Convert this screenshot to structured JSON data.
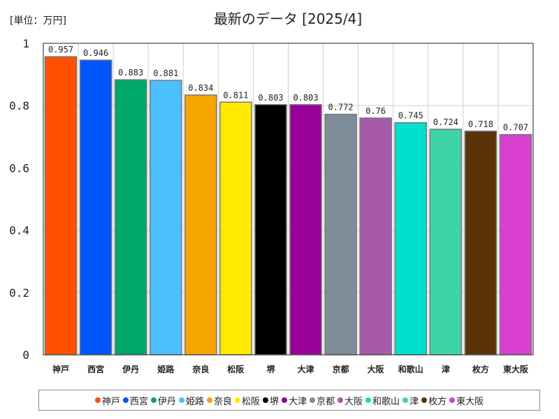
{
  "chart_data": {
    "type": "bar",
    "title": "最新のデータ [2025/4]",
    "unit_label": "[単位：万円]",
    "xlabel": "",
    "ylabel": "",
    "ylim": [
      0,
      1
    ],
    "yticks": [
      "0",
      "0.2",
      "0.4",
      "0.6",
      "0.8",
      "1"
    ],
    "grid": true,
    "legend_position": "bottom",
    "categories": [
      "神戸",
      "西宮",
      "伊丹",
      "姫路",
      "奈良",
      "松阪",
      "堺",
      "大津",
      "京都",
      "大阪",
      "和歌山",
      "津",
      "枚方",
      "東大阪"
    ],
    "values": [
      0.957,
      0.946,
      0.883,
      0.881,
      0.834,
      0.811,
      0.803,
      0.803,
      0.772,
      0.76,
      0.745,
      0.724,
      0.718,
      0.707
    ],
    "value_labels": [
      "0.957",
      "0.946",
      "0.883",
      "0.881",
      "0.834",
      "0.811",
      "0.803",
      "0.803",
      "0.772",
      "0.76",
      "0.745",
      "0.724",
      "0.718",
      "0.707"
    ],
    "colors": [
      "#ff5000",
      "#0055ff",
      "#00a86b",
      "#4cbfff",
      "#f5a500",
      "#ffea00",
      "#000000",
      "#990099",
      "#7f8c99",
      "#a55aaa",
      "#00e0d0",
      "#3fd4a8",
      "#5a3408",
      "#d940d0"
    ]
  }
}
